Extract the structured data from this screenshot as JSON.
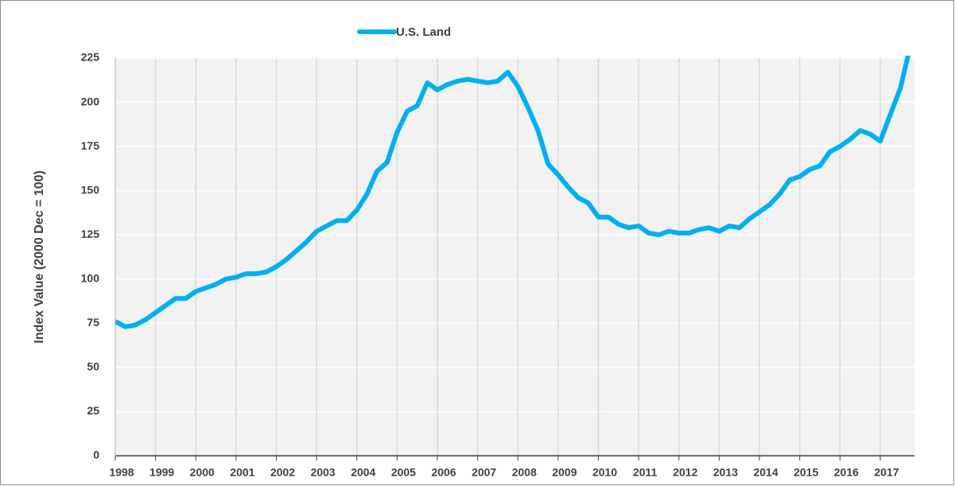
{
  "chart_data": {
    "type": "line",
    "legend_position": "top",
    "y_label": "Index Value (2000 Dec = 100)",
    "grid": true,
    "x": [
      1998,
      1998.25,
      1998.5,
      1998.75,
      1999,
      1999.25,
      1999.5,
      1999.75,
      2000,
      2000.25,
      2000.5,
      2000.75,
      2001,
      2001.25,
      2001.5,
      2001.75,
      2002,
      2002.25,
      2002.5,
      2002.75,
      2003,
      2003.25,
      2003.5,
      2003.75,
      2004,
      2004.25,
      2004.5,
      2004.75,
      2005,
      2005.25,
      2005.5,
      2005.75,
      2006,
      2006.25,
      2006.5,
      2006.75,
      2007,
      2007.25,
      2007.5,
      2007.75,
      2008,
      2008.25,
      2008.5,
      2008.75,
      2009,
      2009.25,
      2009.5,
      2009.75,
      2010,
      2010.25,
      2010.5,
      2010.75,
      2011,
      2011.25,
      2011.5,
      2011.75,
      2012,
      2012.25,
      2012.5,
      2012.75,
      2013,
      2013.25,
      2013.5,
      2013.75,
      2014,
      2014.25,
      2014.5,
      2014.75,
      2015,
      2015.25,
      2015.5,
      2015.75,
      2016,
      2016.25,
      2016.5,
      2016.75,
      2017,
      2017.25,
      2017.5,
      2017.75
    ],
    "series": [
      {
        "name": "U.S. Land",
        "color": "#00b0f0",
        "values": [
          76,
          73,
          74,
          77,
          81,
          85,
          89,
          89,
          93,
          95,
          97,
          100,
          101,
          103,
          103,
          104,
          107,
          111,
          116,
          121,
          127,
          130,
          133,
          133,
          139,
          148,
          161,
          166,
          183,
          195,
          198,
          211,
          207,
          210,
          212,
          213,
          212,
          211,
          212,
          217,
          209,
          197,
          184,
          165,
          159,
          152,
          146,
          143,
          135,
          135,
          131,
          129,
          130,
          126,
          125,
          127,
          126,
          126,
          128,
          129,
          127,
          130,
          129,
          134,
          138,
          142,
          148,
          156,
          158,
          162,
          164,
          172,
          175,
          179,
          184,
          182,
          178,
          193,
          208,
          232
        ]
      }
    ],
    "xlim": [
      1998,
      2017.85
    ],
    "xticks": [
      1998,
      1999,
      2000,
      2001,
      2002,
      2003,
      2004,
      2005,
      2006,
      2007,
      2008,
      2009,
      2010,
      2011,
      2012,
      2013,
      2014,
      2015,
      2016,
      2017
    ],
    "ylim": [
      0,
      225
    ],
    "yticks": [
      0,
      25,
      50,
      75,
      100,
      125,
      150,
      175,
      200,
      225
    ]
  }
}
